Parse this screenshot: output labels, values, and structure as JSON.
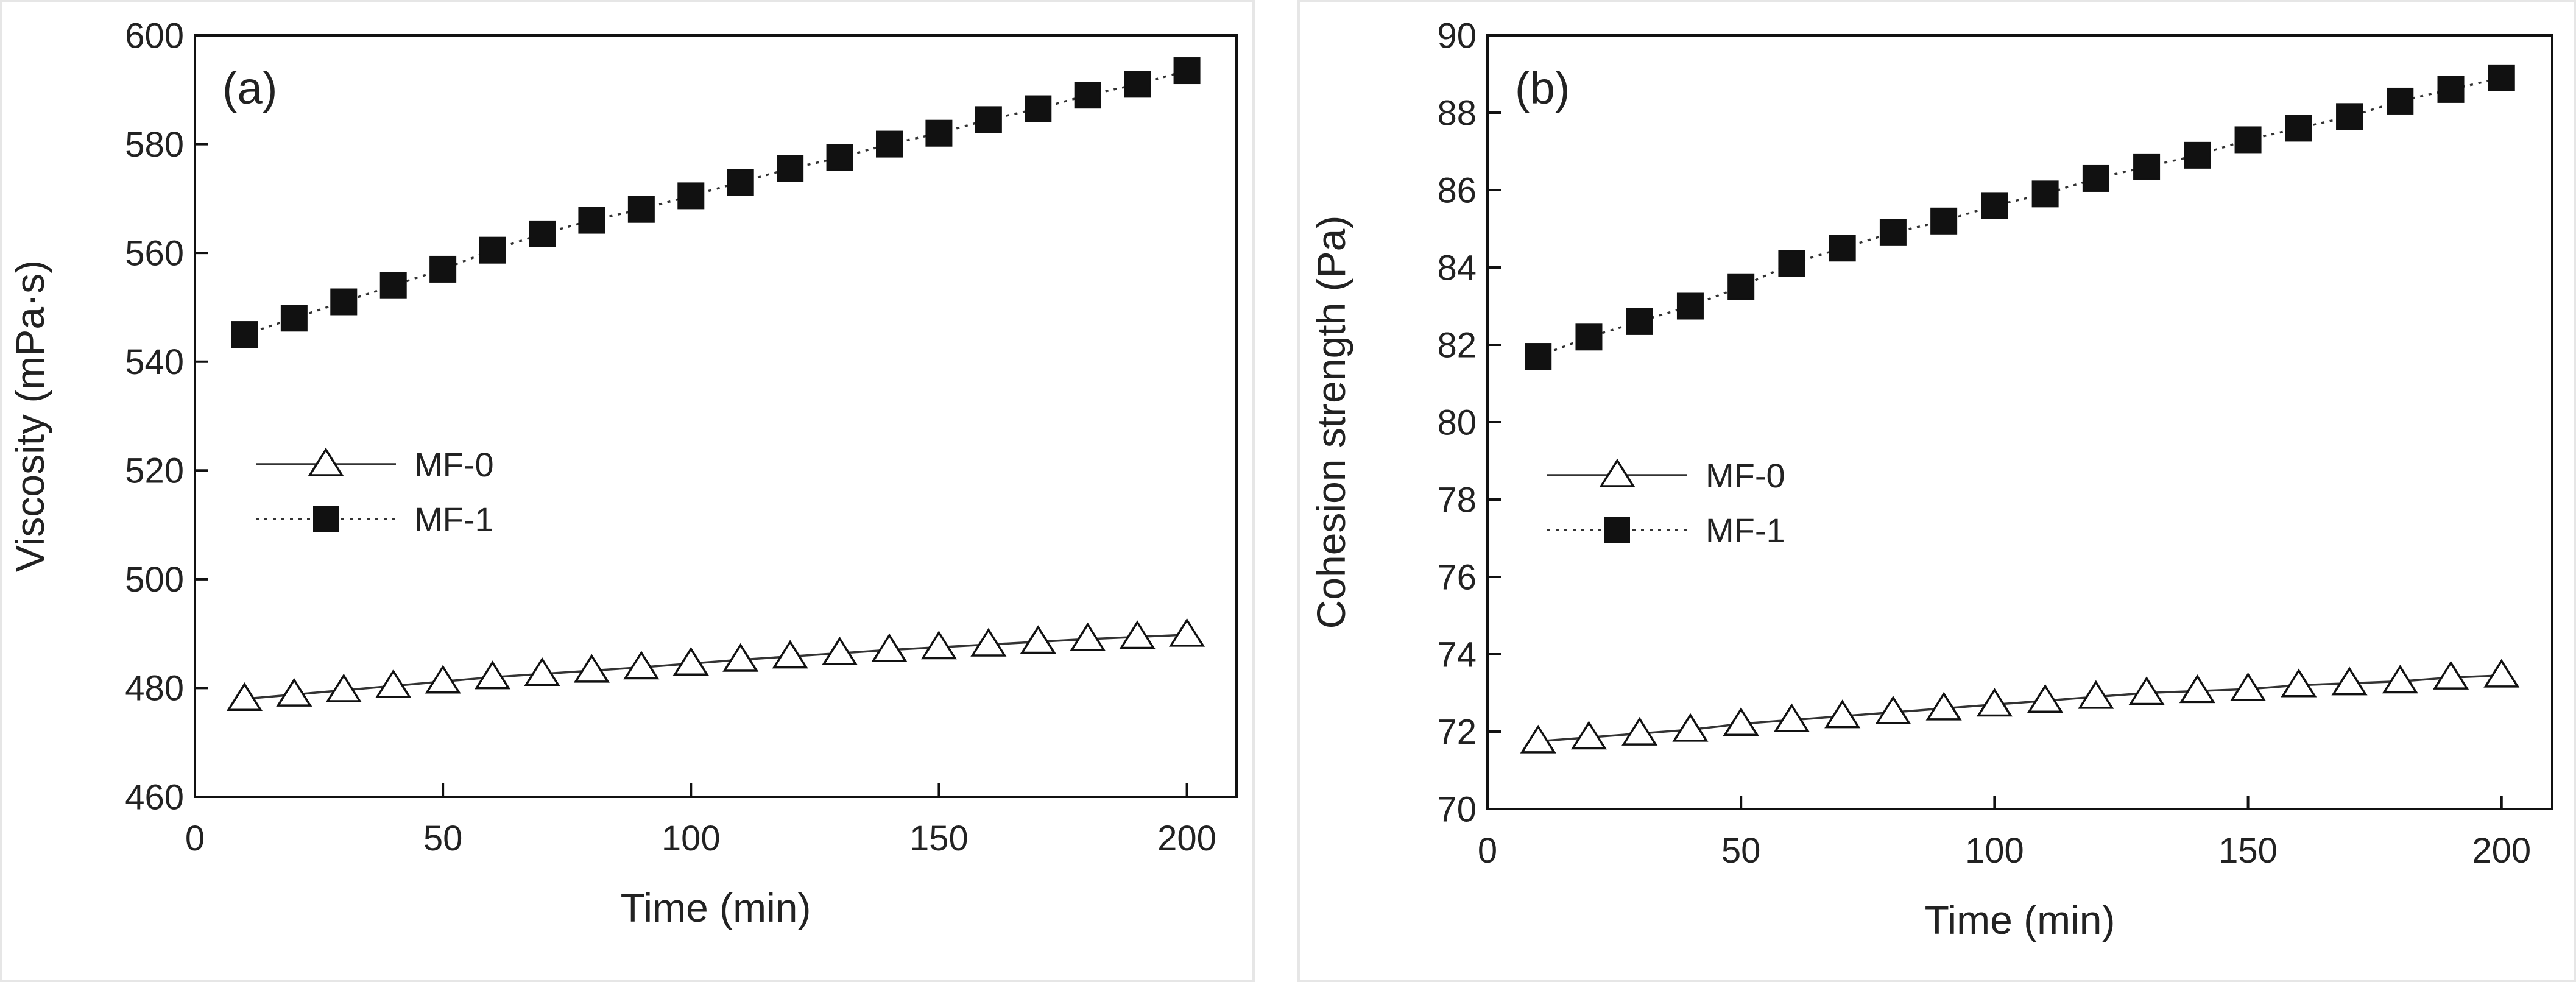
{
  "chart_data": [
    {
      "type": "line",
      "panel_label": "(a)",
      "title": "",
      "xlabel": "Time (min)",
      "ylabel": "Viscosity (mPa·s)",
      "xlim": [
        0,
        210
      ],
      "ylim": [
        460,
        600
      ],
      "xticks": [
        0,
        50,
        100,
        150,
        200
      ],
      "yticks": [
        460,
        480,
        500,
        520,
        540,
        560,
        580,
        600
      ],
      "x": [
        10,
        20,
        30,
        40,
        50,
        60,
        70,
        80,
        90,
        100,
        110,
        120,
        130,
        140,
        150,
        160,
        170,
        180,
        190,
        200
      ],
      "series": [
        {
          "name": "MF-0",
          "marker": "open-triangle",
          "line": "solid",
          "values": [
            478.0,
            478.8,
            479.6,
            480.4,
            481.2,
            482.0,
            482.6,
            483.2,
            483.8,
            484.5,
            485.2,
            485.8,
            486.4,
            487.0,
            487.5,
            488.0,
            488.5,
            489.0,
            489.4,
            489.8
          ]
        },
        {
          "name": "MF-1",
          "marker": "filled-square",
          "line": "dotted",
          "values": [
            545.0,
            548.0,
            551.0,
            554.0,
            557.0,
            560.5,
            563.5,
            566.0,
            568.0,
            570.5,
            573.0,
            575.5,
            577.5,
            580.0,
            582.0,
            584.5,
            586.5,
            589.0,
            591.0,
            593.5
          ]
        }
      ],
      "legend_position": "middle-left",
      "grid": false
    },
    {
      "type": "line",
      "panel_label": "(b)",
      "title": "",
      "xlabel": "Time (min)",
      "ylabel": "Cohesion strength (Pa)",
      "xlim": [
        0,
        210
      ],
      "ylim": [
        70,
        90
      ],
      "xticks": [
        0,
        50,
        100,
        150,
        200
      ],
      "yticks": [
        70,
        72,
        74,
        76,
        78,
        80,
        82,
        84,
        86,
        88,
        90
      ],
      "x": [
        10,
        20,
        30,
        40,
        50,
        60,
        70,
        80,
        90,
        100,
        110,
        120,
        130,
        140,
        150,
        160,
        170,
        180,
        190,
        200
      ],
      "series": [
        {
          "name": "MF-0",
          "marker": "open-triangle",
          "line": "solid",
          "values": [
            71.75,
            71.85,
            71.95,
            72.05,
            72.2,
            72.3,
            72.4,
            72.5,
            72.6,
            72.7,
            72.8,
            72.9,
            73.0,
            73.05,
            73.1,
            73.2,
            73.25,
            73.3,
            73.4,
            73.45
          ]
        },
        {
          "name": "MF-1",
          "marker": "filled-square",
          "line": "dotted",
          "values": [
            81.7,
            82.2,
            82.6,
            83.0,
            83.5,
            84.1,
            84.5,
            84.9,
            85.2,
            85.6,
            85.9,
            86.3,
            86.6,
            86.9,
            87.3,
            87.6,
            87.9,
            88.3,
            88.6,
            88.9
          ]
        }
      ],
      "legend_position": "middle-left",
      "grid": false
    }
  ]
}
